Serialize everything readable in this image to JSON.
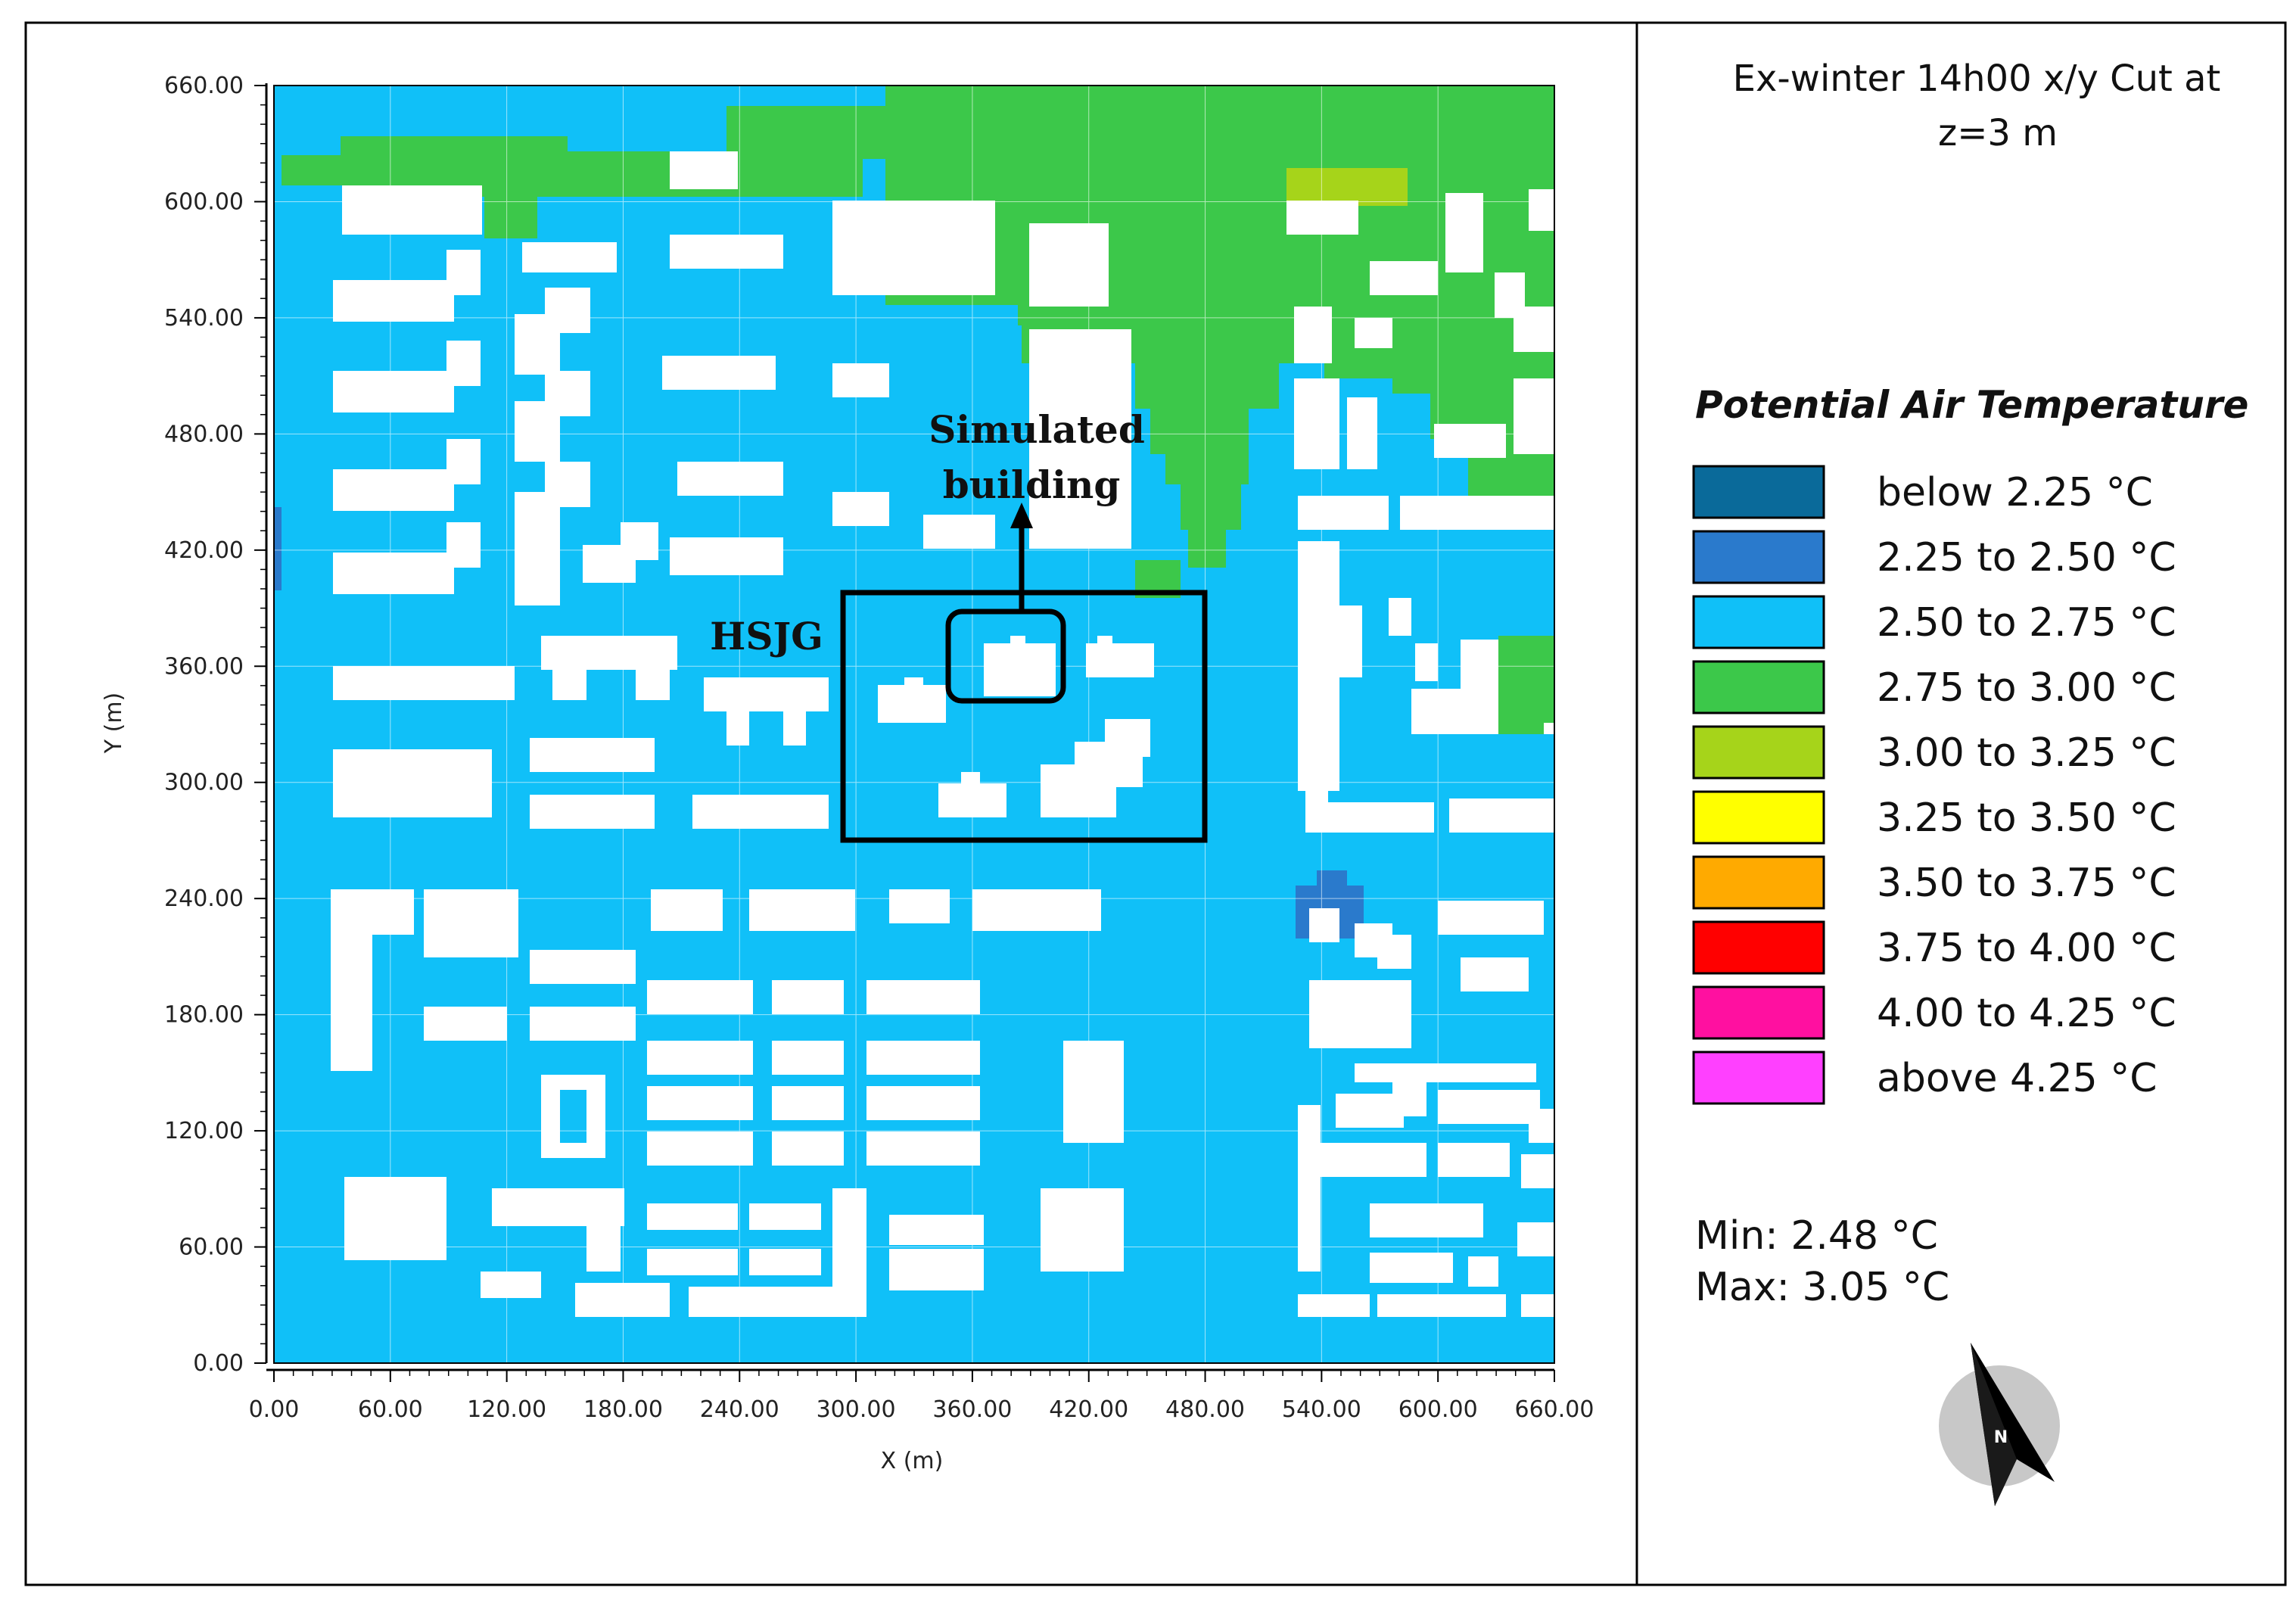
{
  "title": "Ex-winter 14h00 x/y Cut at z=3 m",
  "title_lines": [
    "Ex-winter 14h00 x/y Cut at",
    "z=3 m"
  ],
  "legend": {
    "heading": "Potential Air Temperature",
    "items": [
      {
        "label": "below 2.25 °C",
        "color": "#0a6a9a"
      },
      {
        "label": "2.25 to 2.50 °C",
        "color": "#2a7acc"
      },
      {
        "label": "2.50 to 2.75 °C",
        "color": "#10c0f8"
      },
      {
        "label": "2.75 to 3.00 °C",
        "color": "#3cc84a"
      },
      {
        "label": "3.00 to 3.25 °C",
        "color": "#a6d41a"
      },
      {
        "label": "3.25 to 3.50 °C",
        "color": "#ffff00"
      },
      {
        "label": "3.50 to 3.75 °C",
        "color": "#ffaa00"
      },
      {
        "label": "3.75 to 4.00 °C",
        "color": "#ff0000"
      },
      {
        "label": "4.00 to 4.25 °C",
        "color": "#ff10a0"
      },
      {
        "label": "above 4.25 °C",
        "color": "#ff40ff"
      }
    ]
  },
  "stats": {
    "min": "Min: 2.48 °C",
    "max": "Max: 3.05 °C"
  },
  "north_label": "N",
  "annotations": {
    "simulated_building_lines": [
      "Simulated",
      "building"
    ],
    "hsjg": "HSJG"
  },
  "axes": {
    "xlabel": "X (m)",
    "ylabel": "Y (m)",
    "xticks": [
      "0.00",
      "60.00",
      "120.00",
      "180.00",
      "240.00",
      "300.00",
      "360.00",
      "420.00",
      "480.00",
      "540.00",
      "600.00",
      "660.00"
    ],
    "yticks": [
      "0.00",
      "60.00",
      "120.00",
      "180.00",
      "240.00",
      "300.00",
      "360.00",
      "420.00",
      "480.00",
      "540.00",
      "600.00",
      "660.00"
    ],
    "xlim": [
      0,
      660
    ],
    "ylim": [
      0,
      660
    ]
  },
  "colors": {
    "background_field": "#10c0f8",
    "warm_zone": "#3cc84a",
    "warmer_zone": "#a6d41a",
    "cool_zone": "#2a7acc",
    "buildings": "#ffffff"
  }
}
